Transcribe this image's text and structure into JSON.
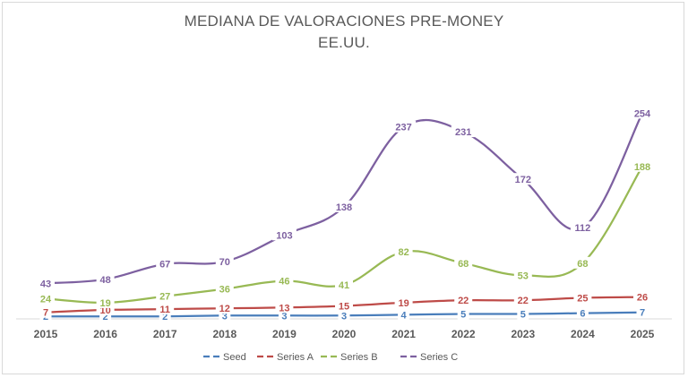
{
  "chart_data": {
    "type": "line",
    "title": "MEDIANA DE VALORACIONES PRE-MONEY",
    "subtitle": "EE.UU.",
    "categories": [
      "2015",
      "2016",
      "2017",
      "2018",
      "2019",
      "2020",
      "2021",
      "2022",
      "2023",
      "2024",
      "2025"
    ],
    "ylim": [
      0,
      260
    ],
    "grid": false,
    "legend_position": "bottom",
    "smooth": true,
    "series": [
      {
        "name": "Seed",
        "color": "#4a7ebb",
        "values": [
          2,
          2,
          2,
          3,
          3,
          3,
          4,
          5,
          5,
          6,
          7
        ]
      },
      {
        "name": "Series A",
        "color": "#be4b48",
        "values": [
          7,
          10,
          11,
          12,
          13,
          15,
          19,
          22,
          22,
          25,
          26
        ]
      },
      {
        "name": "Series B",
        "color": "#98b954",
        "values": [
          24,
          19,
          27,
          36,
          46,
          41,
          82,
          68,
          53,
          68,
          188
        ]
      },
      {
        "name": "Series C",
        "color": "#7d60a0",
        "values": [
          43,
          48,
          67,
          70,
          103,
          138,
          237,
          231,
          172,
          112,
          254
        ]
      }
    ]
  }
}
